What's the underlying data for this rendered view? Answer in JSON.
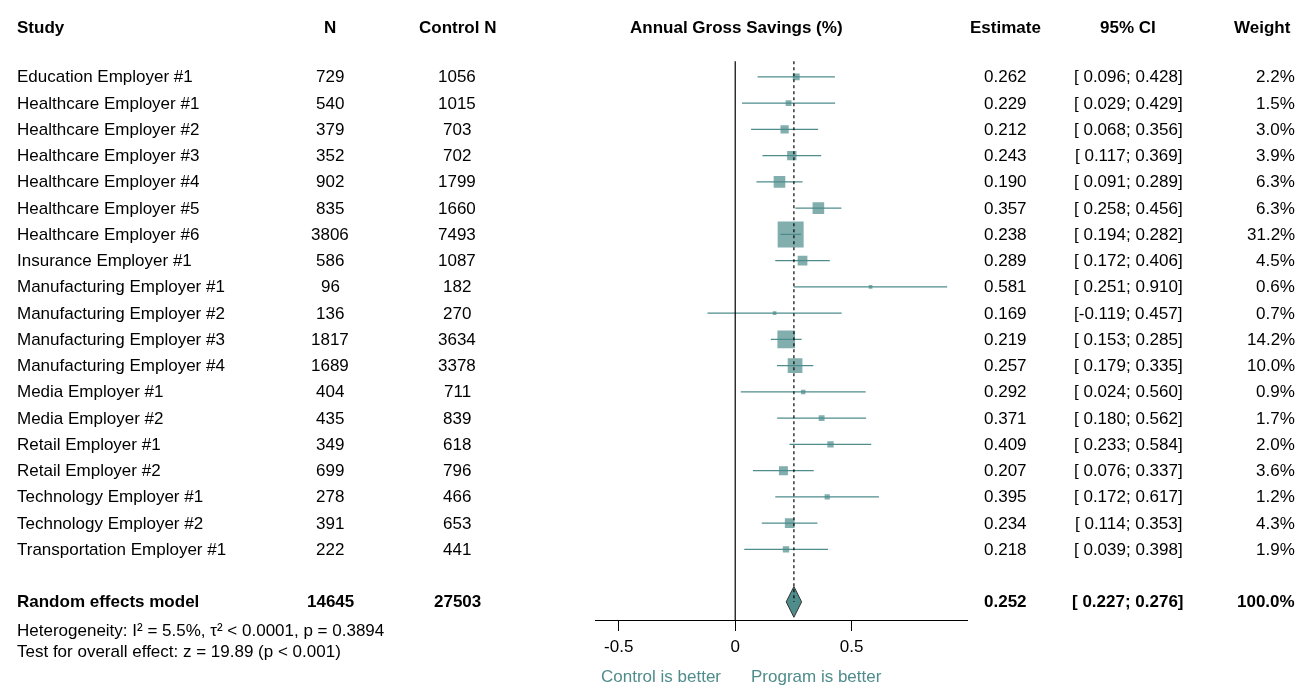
{
  "chart_data": [
    {
      "type": "other",
      "ylabel": "Study",
      "categories": [
        "Education Employer #1",
        "Healthcare Employer #1",
        "Healthcare Employer #2",
        "Healthcare Employer #3",
        "Healthcare Employer #4",
        "Healthcare Employer #5",
        "Healthcare Employer #6",
        "Insurance Employer #1",
        "Manufacturing Employer #1",
        "Manufacturing Employer #2",
        "Manufacturing Employer #3",
        "Manufacturing Employer #4",
        "Media Employer #1",
        "Media Employer #2",
        "Retail Employer #1",
        "Retail Employer #2",
        "Technology Employer #1",
        "Technology Employer #2",
        "Transportation Employer #1",
        null,
        "Random effects model"
      ],
      "data_labels": true,
      "series": [
        {
          "name": "N",
          "values": [
            729,
            540,
            379,
            352,
            902,
            835,
            3806,
            586,
            96,
            136,
            1817,
            1689,
            404,
            435,
            349,
            699,
            278,
            391,
            222,
            null,
            14645
          ]
        },
        {
          "name": "Control N",
          "values": [
            1056,
            1015,
            703,
            702,
            1799,
            1660,
            7493,
            1087,
            182,
            270,
            3634,
            3378,
            711,
            839,
            618,
            796,
            466,
            653,
            441,
            null,
            27503
          ]
        },
        {
          "name": "Estimate",
          "values": [
            0.262,
            0.229,
            0.212,
            0.243,
            0.19,
            0.357,
            0.238,
            0.289,
            0.581,
            0.169,
            0.219,
            0.257,
            0.292,
            0.371,
            0.409,
            0.207,
            0.395,
            0.234,
            0.218,
            null,
            0.252
          ],
          "value_labels": [
            "0.262",
            "0.229",
            "0.212",
            "0.243",
            "0.190",
            "0.357",
            "0.238",
            "0.289",
            "0.581",
            "0.169",
            "0.219",
            "0.257",
            "0.292",
            "0.371",
            "0.409",
            "0.207",
            "0.395",
            "0.234",
            "0.218",
            null,
            "0.252"
          ]
        },
        {
          "name": "95% CI",
          "values": [
            0.096,
            0.029,
            0.068,
            0.117,
            0.091,
            0.258,
            0.194,
            0.172,
            0.251,
            -0.119,
            0.153,
            0.179,
            0.024,
            0.18,
            0.233,
            0.076,
            0.172,
            0.114,
            0.039,
            null,
            0.227
          ],
          "value_labels": [
            "[ 0.096; 0.428]",
            "[ 0.029; 0.429]",
            "[ 0.068; 0.356]",
            "[ 0.117; 0.369]",
            "[ 0.091; 0.289]",
            "[ 0.258; 0.456]",
            "[ 0.194; 0.282]",
            "[ 0.172; 0.406]",
            "[ 0.251; 0.910]",
            "[-0.119; 0.457]",
            "[ 0.153; 0.285]",
            "[ 0.179; 0.335]",
            "[ 0.024; 0.560]",
            "[ 0.180; 0.562]",
            "[ 0.233; 0.584]",
            "[ 0.076; 0.337]",
            "[ 0.172; 0.617]",
            "[ 0.114; 0.353]",
            "[ 0.039; 0.398]",
            null,
            "[ 0.227; 0.276]"
          ]
        },
        {
          "name": "Weight",
          "values": [
            2.2,
            1.5,
            3.0,
            3.9,
            6.3,
            6.3,
            31.2,
            4.5,
            0.6,
            0.7,
            14.2,
            10.0,
            0.9,
            1.7,
            2.0,
            3.6,
            1.2,
            4.3,
            1.9,
            null,
            100.0
          ],
          "value_labels": [
            "2.2%",
            "1.5%",
            "3.0%",
            "3.9%",
            "6.3%",
            "6.3%",
            "31.2%",
            "4.5%",
            "0.6%",
            "0.7%",
            "14.2%",
            "10.0%",
            "0.9%",
            "1.7%",
            "2.0%",
            "3.6%",
            "1.2%",
            "4.3%",
            "1.9%",
            null,
            "100.0%"
          ]
        }
      ],
      "annotations": [
        "Heterogeneity: I² = 5.5%, τ² < 0.0001, p = 0.3894",
        "Test for overall effect: z = 19.89 (p < 0.001)"
      ]
    },
    {
      "type": "scatter",
      "orientation": "horizontal",
      "title": "Annual Gross Savings (%)",
      "categories": [
        null,
        null,
        null,
        null,
        null,
        null,
        null,
        null,
        null,
        null,
        null,
        null,
        null,
        null,
        null,
        null,
        null,
        null,
        null,
        null,
        null
      ],
      "series": [
        {
          "color": "#4f8c8c",
          "marker": "square",
          "values": [
            0.262,
            0.229,
            0.212,
            0.243,
            0.19,
            0.357,
            0.238,
            0.289,
            0.581,
            0.169,
            0.219,
            0.257,
            0.292,
            0.371,
            0.409,
            0.207,
            0.395,
            0.234,
            0.218,
            null,
            null
          ],
          "errors": [
            [
              0.096,
              0.428
            ],
            [
              0.029,
              0.429
            ],
            [
              0.068,
              0.356
            ],
            [
              0.117,
              0.369
            ],
            [
              0.091,
              0.289
            ],
            [
              0.258,
              0.456
            ],
            [
              0.194,
              0.282
            ],
            [
              0.172,
              0.406
            ],
            [
              0.251,
              0.91
            ],
            [
              -0.119,
              0.457
            ],
            [
              0.153,
              0.285
            ],
            [
              0.179,
              0.335
            ],
            [
              0.024,
              0.56
            ],
            [
              0.18,
              0.562
            ],
            [
              0.233,
              0.584
            ],
            [
              0.076,
              0.337
            ],
            [
              0.172,
              0.617
            ],
            [
              0.114,
              0.353
            ],
            [
              0.039,
              0.398
            ],
            null,
            null
          ],
          "sizes": [
            0.07,
            0.05,
            0.1,
            0.13,
            0.2,
            0.2,
            1,
            0.14,
            0.02,
            0.02,
            0.46,
            0.32,
            0.03,
            0.05,
            0.06,
            0.12,
            0.04,
            0.14,
            0.06,
            null,
            null
          ]
        },
        {
          "color": "#4f8c8c",
          "marker": "diamond",
          "values": [
            null,
            null,
            null,
            null,
            null,
            null,
            null,
            null,
            null,
            null,
            null,
            null,
            null,
            null,
            null,
            null,
            null,
            null,
            null,
            null,
            0.252
          ]
        }
      ],
      "xlim": [
        -0.6,
        1.0
      ],
      "xticks": [
        -0.5,
        0,
        0.5
      ],
      "ref_lines": [
        {
          "axis": "x",
          "value": 0,
          "color": "#000000",
          "line_style": "solid"
        },
        {
          "axis": "x",
          "value": 0.252,
          "color": "#000000",
          "line_style": "dotted"
        }
      ],
      "annotations": [
        "Control is better",
        "Program is better"
      ]
    }
  ]
}
